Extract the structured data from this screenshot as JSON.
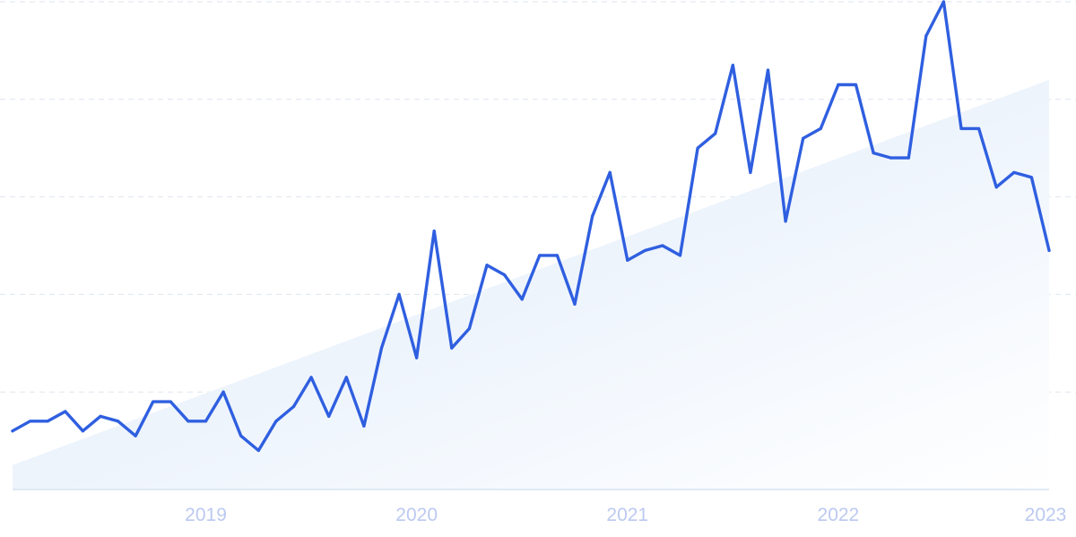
{
  "chart_data": {
    "type": "line",
    "title": "",
    "xlabel": "",
    "ylabel": "",
    "x_ticks": [
      "2019",
      "2020",
      "2021",
      "2022",
      "2023"
    ],
    "x_range": [
      "2018-02",
      "2023-01"
    ],
    "ylim": [
      0,
      100
    ],
    "grid": true,
    "legend": "none",
    "trend": {
      "start": 5,
      "end": 84
    },
    "colors": {
      "line": "#2f5fe0",
      "area_top": "#dce9fa",
      "area_bottom": "#ffffff",
      "grid": "#dde6ef",
      "tick_label": "#bcc9f0"
    },
    "series": [
      {
        "x": [
          "2018-02",
          "2018-03",
          "2018-04",
          "2018-05",
          "2018-06",
          "2018-07",
          "2018-08",
          "2018-09",
          "2018-10",
          "2018-11",
          "2018-12",
          "2019-01",
          "2019-02",
          "2019-03",
          "2019-04",
          "2019-05",
          "2019-06",
          "2019-07",
          "2019-08",
          "2019-09",
          "2019-10",
          "2019-11",
          "2019-12",
          "2020-01",
          "2020-02",
          "2020-03",
          "2020-04",
          "2020-05",
          "2020-06",
          "2020-07",
          "2020-08",
          "2020-09",
          "2020-10",
          "2020-11",
          "2020-12",
          "2021-01",
          "2021-02",
          "2021-03",
          "2021-04",
          "2021-05",
          "2021-06",
          "2021-07",
          "2021-08",
          "2021-09",
          "2021-10",
          "2021-11",
          "2021-12",
          "2022-01",
          "2022-02",
          "2022-03",
          "2022-04",
          "2022-05",
          "2022-06",
          "2022-07",
          "2022-08",
          "2022-09",
          "2022-10",
          "2022-11",
          "2022-12",
          "2023-01"
        ],
        "values": [
          12,
          14,
          14,
          16,
          12,
          15,
          14,
          11,
          18,
          18,
          14,
          14,
          20,
          11,
          8,
          14,
          17,
          23,
          15,
          23,
          13,
          29,
          40,
          27,
          53,
          29,
          33,
          46,
          44,
          39,
          48,
          48,
          38,
          56,
          65,
          47,
          49,
          50,
          48,
          70,
          73,
          87,
          65,
          86,
          55,
          72,
          74,
          83,
          83,
          69,
          68,
          68,
          93,
          100,
          74,
          74,
          62,
          65,
          64,
          49
        ]
      }
    ]
  }
}
